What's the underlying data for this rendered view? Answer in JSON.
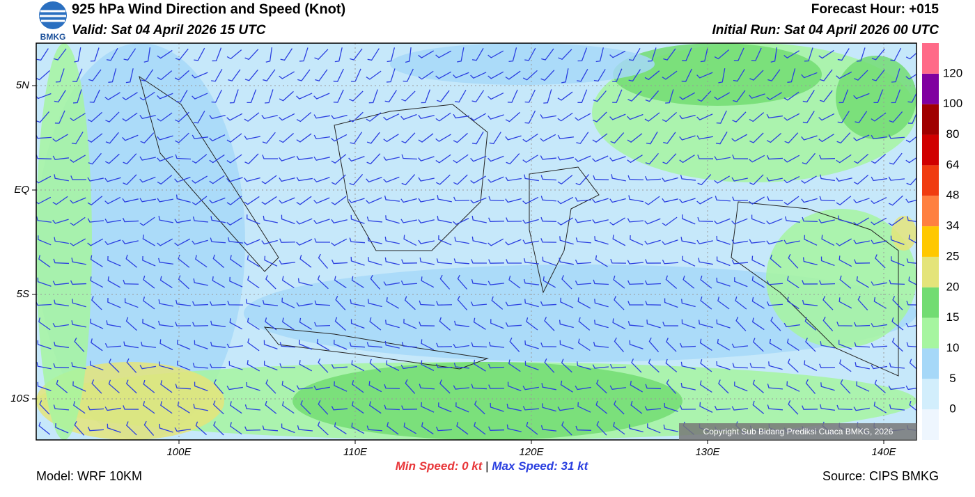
{
  "header": {
    "title": "925 hPa Wind Direction and Speed (Knot)",
    "valid": "Valid: Sat 04 April 2026 15 UTC",
    "forecast_hour": "Forecast Hour: +015",
    "initial_run": "Initial Run: Sat 04 April 2026 00 UTC",
    "logo_text": "BMKG"
  },
  "map": {
    "lat_labels": [
      "5N",
      "EQ",
      "5S",
      "10S"
    ],
    "lon_labels": [
      "100E",
      "110E",
      "120E",
      "130E",
      "140E"
    ],
    "copyright": "Copyright Sub Bidang Prediksi Cuaca BMKG, 2026"
  },
  "colorbar": {
    "labels": [
      "0",
      "5",
      "10",
      "15",
      "20",
      "25",
      "34",
      "48",
      "64",
      "80",
      "100",
      "120"
    ],
    "colors": [
      "#eef6fe",
      "#d2eefc",
      "#a6d8f8",
      "#a6f5a0",
      "#72dc72",
      "#e4e47a",
      "#ffc800",
      "#ff8040",
      "#f03c10",
      "#d00000",
      "#a00000",
      "#8000a0",
      "#ff6a88"
    ]
  },
  "footer": {
    "min_label": "Min Speed:",
    "min_value": "0 kt",
    "separator": "|",
    "max_label": "Max Speed:",
    "max_value": "31 kt",
    "model": "Model: WRF 10KM",
    "source": "Source: CIPS BMKG"
  }
}
